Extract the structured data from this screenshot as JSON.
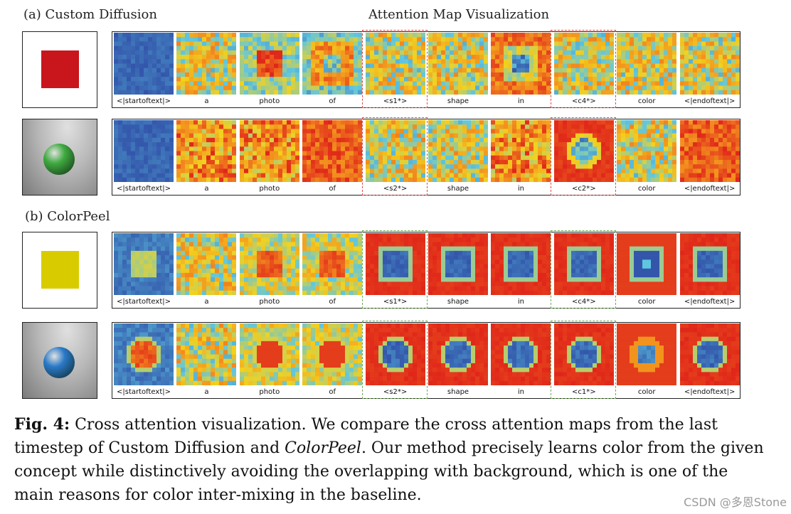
{
  "headings": {
    "custom_diffusion": "(a) Custom Diffusion",
    "attention_title": "Attention Map Visualization",
    "colorpeel": "(b) ColorPeel"
  },
  "rows": [
    {
      "concept": {
        "kind": "square",
        "color": "#c8161c",
        "background": "white"
      },
      "labels": [
        "<|startoftext|>",
        "a",
        "photo",
        "of",
        "<s1*>",
        "shape",
        "in",
        "<c4*>",
        "color",
        "<|endoftext|>"
      ],
      "maps": [
        "cold",
        "noise",
        "center_hot",
        "ring",
        "noise",
        "noise",
        "frame_hot",
        "noise",
        "noise",
        "noise"
      ],
      "highlight_color": "red"
    },
    {
      "concept": {
        "kind": "sphere",
        "color": "#3faa3f",
        "background": "gray"
      },
      "labels": [
        "<|startoftext|>",
        "a",
        "photo",
        "of",
        "<s2*>",
        "shape",
        "in",
        "<c2*>",
        "color",
        "<|endoftext|>"
      ],
      "maps": [
        "cold",
        "hot_noise",
        "hot_noise",
        "hot",
        "noise",
        "noise",
        "hot_noise",
        "blob",
        "noise",
        "hot"
      ],
      "highlight_color": "red"
    },
    {
      "concept": {
        "kind": "square",
        "color": "#d8cc00",
        "background": "white"
      },
      "labels": [
        "<|startoftext|>",
        "a",
        "photo",
        "of",
        "<s1*>",
        "shape",
        "in",
        "<c4*>",
        "color",
        "<|endoftext|>"
      ],
      "maps": [
        "square_cool",
        "noise",
        "square_warm",
        "square_warm",
        "square_crisp",
        "square_crisp",
        "square_crisp",
        "square_crisp",
        "square_ring",
        "square_crisp"
      ],
      "highlight_color": "green"
    },
    {
      "concept": {
        "kind": "sphere",
        "color": "#2a7ac8",
        "background": "gray"
      },
      "labels": [
        "<|startoftext|>",
        "a",
        "photo",
        "of",
        "<s2*>",
        "shape",
        "in",
        "<c1*>",
        "color",
        "<|endoftext|>"
      ],
      "maps": [
        "circle_warm",
        "noise",
        "circle_hot",
        "circle_hot",
        "circle_crisp",
        "circle_crisp",
        "circle_crisp",
        "circle_crisp",
        "circle_ring",
        "circle_crisp"
      ],
      "highlight_color": "green"
    }
  ],
  "highlight_columns": [
    4,
    7
  ],
  "caption": {
    "fig_label": "Fig. 4:",
    "part1": " Cross attention visualization. We compare the cross attention maps from the last timestep of Custom Diffusion and ",
    "method_name": "ColorPeel",
    "part2": ". Our method precisely learns color from the given concept while distinctively avoiding the overlapping with background, which is one of the main reasons for color inter-mixing in the baseline."
  },
  "watermark": "CSDN @多恩Stone",
  "colors": {
    "jet_blue": "#2a3fa0",
    "jet_cyan": "#5fc6e0",
    "jet_yellow": "#f2d21f",
    "jet_orange": "#f28a1e",
    "jet_red": "#e0261a",
    "highlight_red": "#d94a4a",
    "highlight_green": "#6aa84f"
  }
}
